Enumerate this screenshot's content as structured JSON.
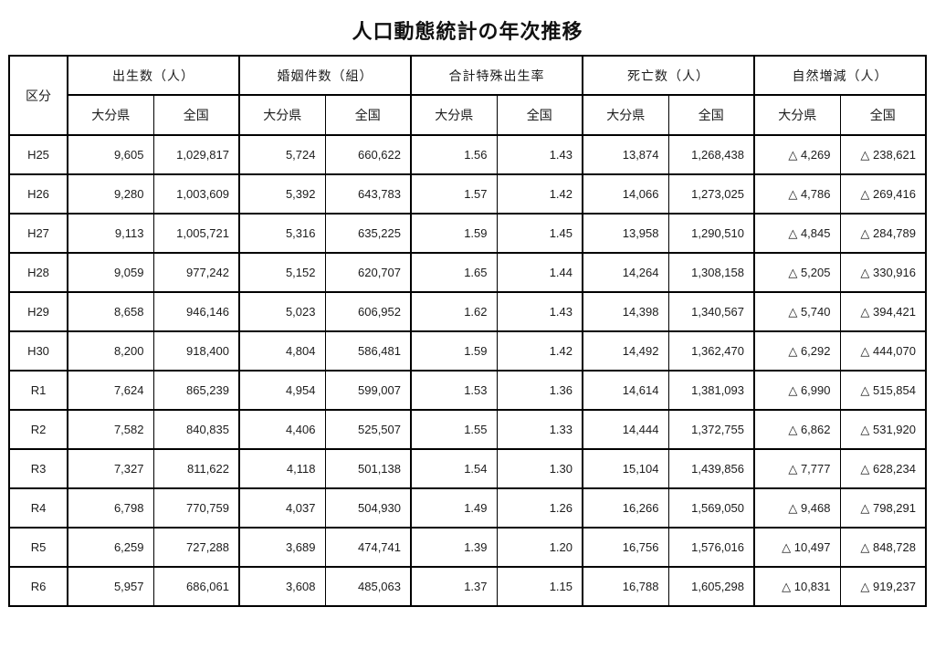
{
  "title": "人口動態統計の年次推移",
  "colors": {
    "border": "#000000",
    "background": "#ffffff",
    "text": "#1c1c1c"
  },
  "table": {
    "corner_label": "区分",
    "groups": [
      {
        "label": "出生数（人）",
        "sub": [
          "大分県",
          "全国"
        ]
      },
      {
        "label": "婚姻件数（組）",
        "sub": [
          "大分県",
          "全国"
        ]
      },
      {
        "label": "合計特殊出生率",
        "sub": [
          "大分県",
          "全国"
        ]
      },
      {
        "label": "死亡数（人）",
        "sub": [
          "大分県",
          "全国"
        ]
      },
      {
        "label": "自然増減（人）",
        "sub": [
          "大分県",
          "全国"
        ]
      }
    ],
    "rows": [
      {
        "label": "H25",
        "values": [
          "9,605",
          "1,029,817",
          "5,724",
          "660,622",
          "1.56",
          "1.43",
          "13,874",
          "1,268,438",
          "△ 4,269",
          "△ 238,621"
        ]
      },
      {
        "label": "H26",
        "values": [
          "9,280",
          "1,003,609",
          "5,392",
          "643,783",
          "1.57",
          "1.42",
          "14,066",
          "1,273,025",
          "△ 4,786",
          "△ 269,416"
        ]
      },
      {
        "label": "H27",
        "values": [
          "9,113",
          "1,005,721",
          "5,316",
          "635,225",
          "1.59",
          "1.45",
          "13,958",
          "1,290,510",
          "△ 4,845",
          "△ 284,789"
        ]
      },
      {
        "label": "H28",
        "values": [
          "9,059",
          "977,242",
          "5,152",
          "620,707",
          "1.65",
          "1.44",
          "14,264",
          "1,308,158",
          "△ 5,205",
          "△ 330,916"
        ]
      },
      {
        "label": "H29",
        "values": [
          "8,658",
          "946,146",
          "5,023",
          "606,952",
          "1.62",
          "1.43",
          "14,398",
          "1,340,567",
          "△ 5,740",
          "△ 394,421"
        ]
      },
      {
        "label": "H30",
        "values": [
          "8,200",
          "918,400",
          "4,804",
          "586,481",
          "1.59",
          "1.42",
          "14,492",
          "1,362,470",
          "△ 6,292",
          "△ 444,070"
        ]
      },
      {
        "label": "R1",
        "values": [
          "7,624",
          "865,239",
          "4,954",
          "599,007",
          "1.53",
          "1.36",
          "14,614",
          "1,381,093",
          "△ 6,990",
          "△ 515,854"
        ]
      },
      {
        "label": "R2",
        "values": [
          "7,582",
          "840,835",
          "4,406",
          "525,507",
          "1.55",
          "1.33",
          "14,444",
          "1,372,755",
          "△ 6,862",
          "△ 531,920"
        ]
      },
      {
        "label": "R3",
        "values": [
          "7,327",
          "811,622",
          "4,118",
          "501,138",
          "1.54",
          "1.30",
          "15,104",
          "1,439,856",
          "△ 7,777",
          "△ 628,234"
        ]
      },
      {
        "label": "R4",
        "values": [
          "6,798",
          "770,759",
          "4,037",
          "504,930",
          "1.49",
          "1.26",
          "16,266",
          "1,569,050",
          "△ 9,468",
          "△ 798,291"
        ]
      },
      {
        "label": "R5",
        "values": [
          "6,259",
          "727,288",
          "3,689",
          "474,741",
          "1.39",
          "1.20",
          "16,756",
          "1,576,016",
          "△ 10,497",
          "△ 848,728"
        ]
      },
      {
        "label": "R6",
        "values": [
          "5,957",
          "686,061",
          "3,608",
          "485,063",
          "1.37",
          "1.15",
          "16,788",
          "1,605,298",
          "△ 10,831",
          "△ 919,237"
        ]
      }
    ]
  }
}
